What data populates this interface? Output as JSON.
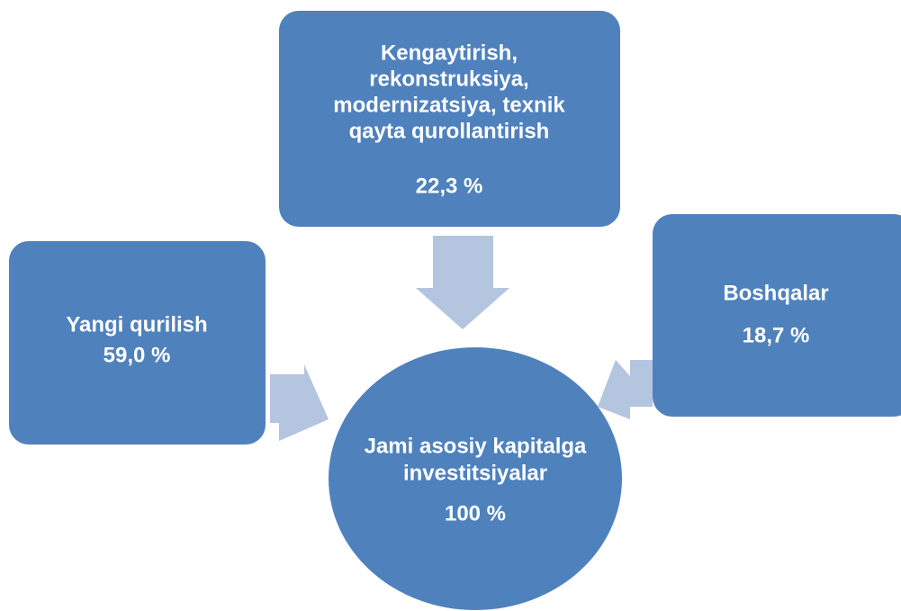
{
  "nodes": [
    {
      "label": [
        "Kengaytirish,",
        "rekonstruksiya,",
        "modernizatsiya, texnik",
        "qayta qurollantirish"
      ],
      "value": "22,3 %"
    },
    {
      "label": [
        "Yangi qurilish"
      ],
      "value": "59,0 %"
    },
    {
      "label": [
        "Boshqalar"
      ],
      "value": "18,7 %"
    },
    {
      "label": [
        "Jami asosiy kapitalga",
        "investitsiyalar"
      ],
      "value": "100 %"
    }
  ]
}
